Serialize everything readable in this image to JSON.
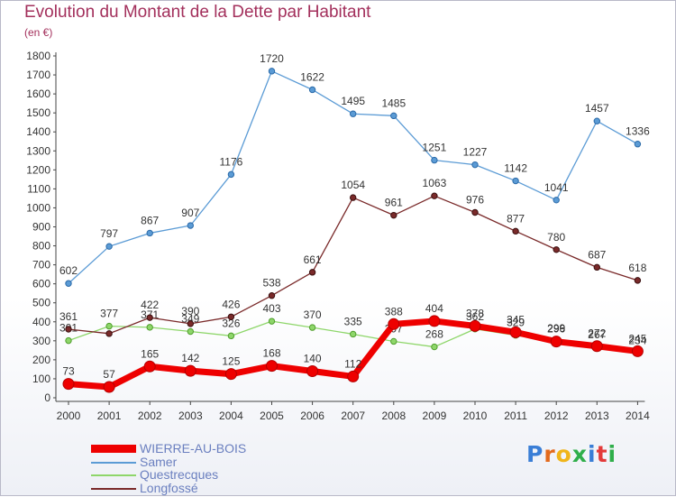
{
  "title": "Evolution du Montant de la Dette par Habitant",
  "subtitle": "(en €)",
  "logo_text": "Proxiti",
  "logo_colors": [
    "#3a7ed6",
    "#e36a1c",
    "#f0b51a",
    "#2fae4a",
    "#3a7ed6",
    "#e33a3a",
    "#2fae4a"
  ],
  "chart_data": {
    "type": "line",
    "x": [
      "2000",
      "2001",
      "2002",
      "2003",
      "2004",
      "2005",
      "2006",
      "2007",
      "2008",
      "2009",
      "2010",
      "2011",
      "2012",
      "2013",
      "2014"
    ],
    "yticks": [
      "0",
      "100",
      "200",
      "300",
      "400",
      "500",
      "600",
      "700",
      "800",
      "900",
      "1000",
      "1100",
      "1200",
      "1300",
      "1400",
      "1500",
      "1600",
      "1700",
      "1800"
    ],
    "ylim": [
      0,
      1800
    ],
    "grid": false,
    "legend": "bottom-left",
    "series": [
      {
        "name": "Samer",
        "color": "#5b9bd5",
        "values": [
          602,
          797,
          867,
          907,
          1176,
          1720,
          1622,
          1495,
          1485,
          1251,
          1227,
          1142,
          1041,
          1457,
          1336
        ],
        "labels": [
          "602",
          "797",
          "867",
          "907",
          "1176",
          "1720",
          "1622",
          "1495",
          "1485",
          "1251",
          "1227",
          "1142",
          "1041",
          "1457",
          "1336"
        ]
      },
      {
        "name": "Questrecques",
        "color": "#8ed66a",
        "values": [
          301,
          377,
          371,
          349,
          326,
          403,
          370,
          335,
          297,
          268,
          362,
          329,
          299,
          267,
          234
        ],
        "labels": [
          "301",
          "377",
          "371",
          "349",
          "326",
          "403",
          "370",
          "335",
          "297",
          "268",
          "362",
          "329",
          "299",
          "267",
          "234"
        ]
      },
      {
        "name": "Longfossé",
        "color": "#7a2a2a",
        "values": [
          361,
          338,
          422,
          390,
          426,
          538,
          661,
          1054,
          961,
          1063,
          976,
          877,
          780,
          687,
          618
        ],
        "labels": [
          "361",
          "",
          "422",
          "390",
          "426",
          "538",
          "661",
          "1054",
          "961",
          "1063",
          "976",
          "877",
          "780",
          "687",
          "618"
        ]
      },
      {
        "name": "WIERRE-AU-BOIS",
        "color": "#ee0000",
        "values": [
          73,
          57,
          165,
          142,
          125,
          168,
          140,
          112,
          388,
          404,
          378,
          345,
          296,
          272,
          245
        ],
        "labels": [
          "73",
          "57",
          "165",
          "142",
          "125",
          "168",
          "140",
          "112",
          "388",
          "404",
          "378",
          "345",
          "296",
          "272",
          "245"
        ]
      }
    ]
  }
}
